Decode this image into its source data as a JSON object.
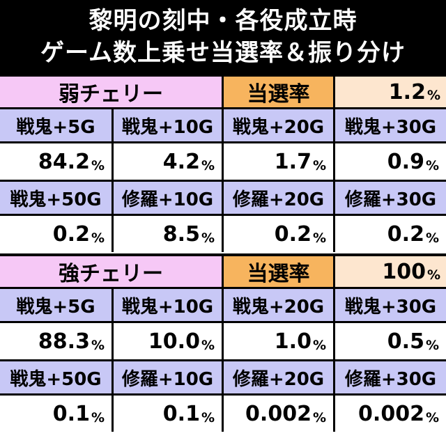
{
  "title": {
    "line1": "黎明の刻中・各役成立時",
    "line2": "ゲーム数上乗せ当選率＆振り分け"
  },
  "percent_unit": "%",
  "rate_label": "当選率",
  "sections": [
    {
      "name": "弱チェリー",
      "rate": "1.2",
      "rows": [
        {
          "labels": [
            "戦鬼+5G",
            "戦鬼+10G",
            "戦鬼+20G",
            "戦鬼+30G"
          ],
          "values": [
            "84.2",
            "4.2",
            "1.7",
            "0.9"
          ]
        },
        {
          "labels": [
            "戦鬼+50G",
            "修羅+10G",
            "修羅+20G",
            "修羅+30G"
          ],
          "values": [
            "0.2",
            "8.5",
            "0.2",
            "0.2"
          ]
        }
      ]
    },
    {
      "name": "強チェリー",
      "rate": "100",
      "rows": [
        {
          "labels": [
            "戦鬼+5G",
            "戦鬼+10G",
            "戦鬼+20G",
            "戦鬼+30G"
          ],
          "values": [
            "88.3",
            "10.0",
            "1.0",
            "0.5"
          ]
        },
        {
          "labels": [
            "戦鬼+50G",
            "修羅+10G",
            "修羅+20G",
            "修羅+30G"
          ],
          "values": [
            "0.1",
            "0.1",
            "0.002",
            "0.002"
          ]
        }
      ]
    }
  ]
}
